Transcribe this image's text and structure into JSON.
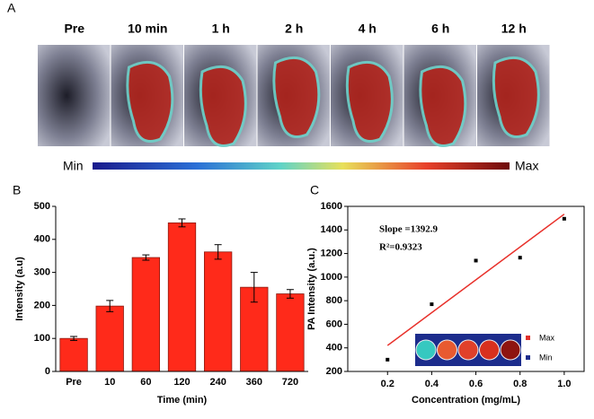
{
  "panel_a": {
    "label": "A",
    "time_points": [
      "Pre",
      "10 min",
      "1 h",
      "2 h",
      "4 h",
      "6 h",
      "12 h"
    ],
    "colorbar": {
      "min": "Min",
      "max": "Max"
    }
  },
  "chart_data": [
    {
      "type": "bar",
      "panel_label": "B",
      "categories": [
        "Pre",
        "10",
        "60",
        "120",
        "240",
        "360",
        "720"
      ],
      "values": [
        100,
        198,
        345,
        450,
        362,
        255,
        235
      ],
      "errors": [
        6,
        17,
        8,
        12,
        22,
        45,
        13
      ],
      "color": "#ff2a1a",
      "xlabel": "Time (min)",
      "ylabel": "Intensity (a.u)",
      "ylim": [
        0,
        500
      ],
      "yticks": [
        0,
        100,
        200,
        300,
        400,
        500
      ]
    },
    {
      "type": "scatter",
      "panel_label": "C",
      "x": [
        0.2,
        0.4,
        0.6,
        0.8,
        1.0
      ],
      "values": [
        300,
        770,
        1140,
        1165,
        1495
      ],
      "color": "#000000",
      "fit": {
        "x": [
          0.2,
          1.0
        ],
        "values": [
          420,
          1534
        ],
        "color": "#e8302a"
      },
      "annotations": [
        "Slope =1392.9",
        "R²=0.9323"
      ],
      "inset_legend": [
        "Max",
        "Min"
      ],
      "xlabel": "Concentration (mg/mL)",
      "ylabel": "PA Intensity (a.u.)",
      "xlim": [
        0.02,
        1.09
      ],
      "xticks": [
        0.2,
        0.4,
        0.6,
        0.8,
        {
          "value": 1.0,
          "label": "1.0"
        }
      ],
      "ylim": [
        200,
        1600
      ],
      "yticks": [
        200,
        400,
        600,
        800,
        1000,
        1200,
        1400,
        1600
      ]
    }
  ]
}
